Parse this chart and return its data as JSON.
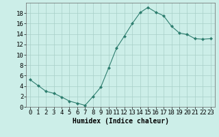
{
  "x": [
    0,
    1,
    2,
    3,
    4,
    5,
    6,
    7,
    8,
    9,
    10,
    11,
    12,
    13,
    14,
    15,
    16,
    17,
    18,
    19,
    20,
    21,
    22,
    23
  ],
  "y": [
    5.2,
    4.1,
    3.0,
    2.6,
    1.9,
    1.1,
    0.7,
    0.3,
    2.0,
    3.8,
    7.5,
    11.3,
    13.6,
    16.0,
    18.1,
    19.1,
    18.2,
    17.5,
    15.5,
    14.2,
    13.9,
    13.1,
    13.0,
    13.1
  ],
  "line_color": "#2d7d6e",
  "marker": "D",
  "marker_size": 2,
  "bg_color": "#cceee8",
  "grid_color": "#a8cfc8",
  "xlabel": "Humidex (Indice chaleur)",
  "xlim": [
    -0.5,
    23.5
  ],
  "ylim": [
    0,
    20
  ],
  "yticks": [
    0,
    2,
    4,
    6,
    8,
    10,
    12,
    14,
    16,
    18
  ],
  "xticks": [
    0,
    1,
    2,
    3,
    4,
    5,
    6,
    7,
    8,
    9,
    10,
    11,
    12,
    13,
    14,
    15,
    16,
    17,
    18,
    19,
    20,
    21,
    22,
    23
  ],
  "label_fontsize": 7,
  "tick_fontsize": 6.5
}
